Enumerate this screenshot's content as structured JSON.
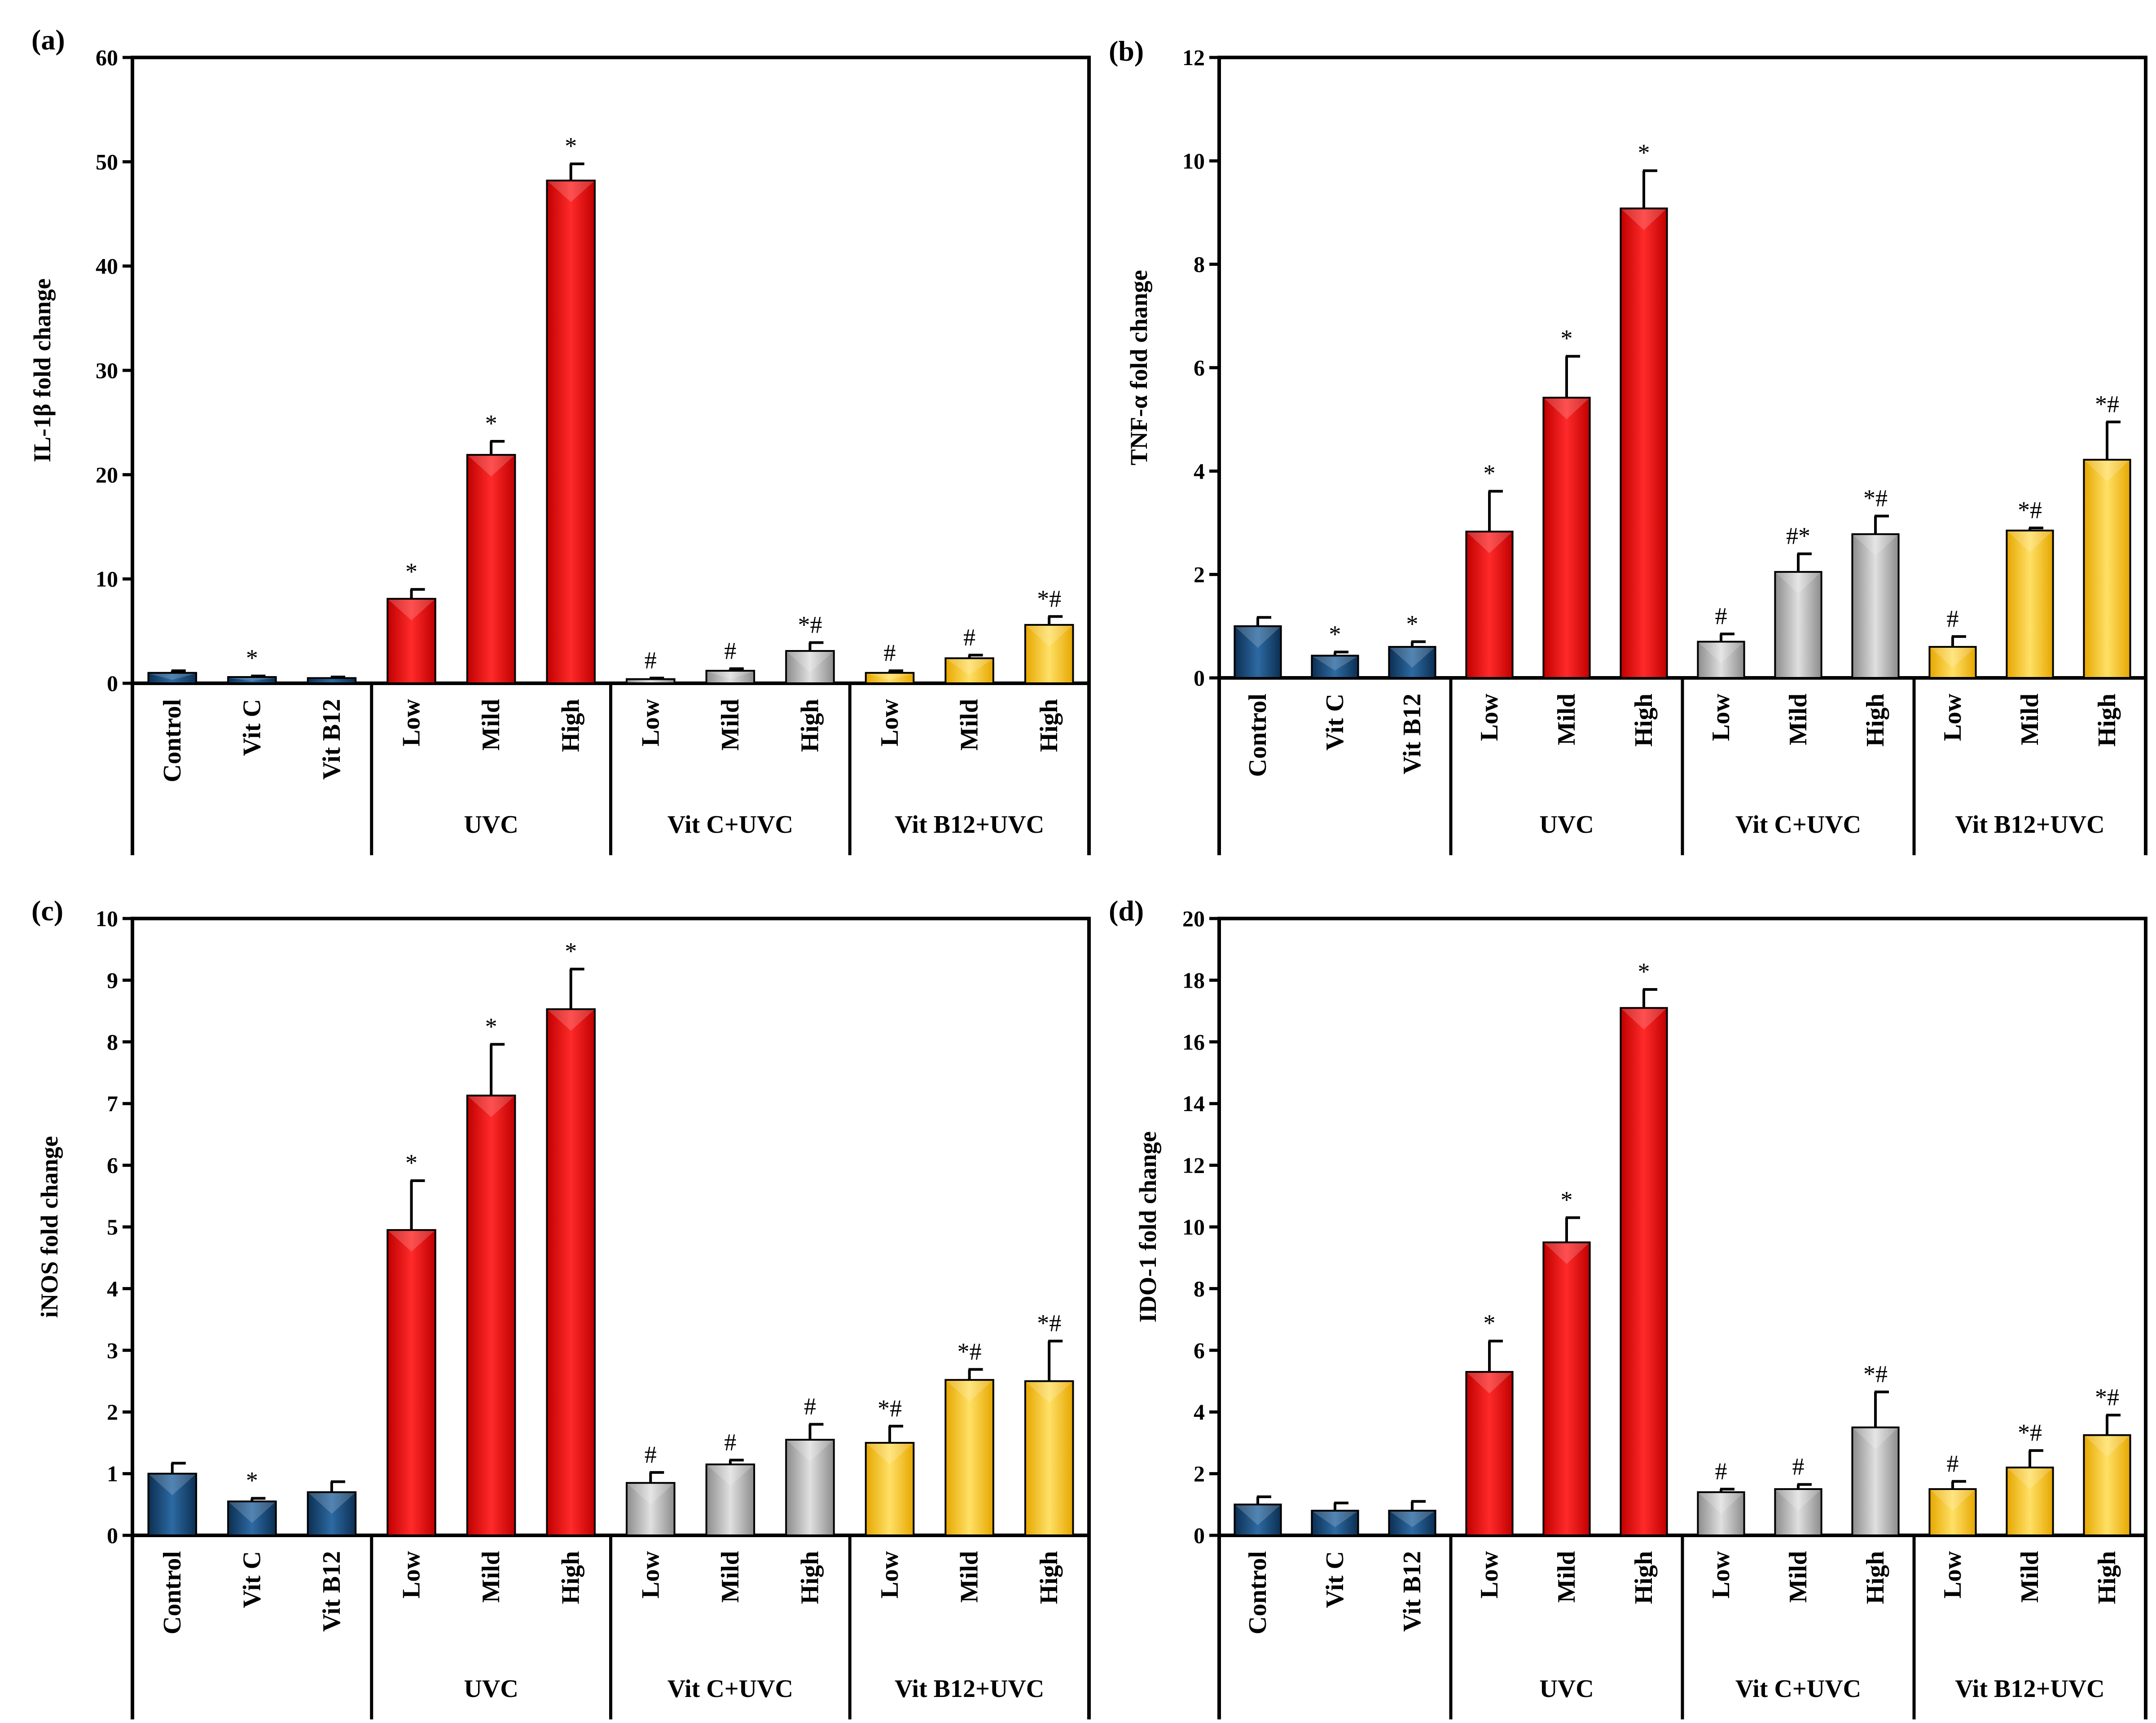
{
  "figure": {
    "palette": {
      "blue": "#1f4e79",
      "red": "#e3121b",
      "gray": "#a6a6a6",
      "yellow": "#ffc000"
    }
  },
  "chart_data": [
    {
      "type": "bar",
      "panel": "(a)",
      "ylabel": "IL-1β fold change",
      "ylim": [
        0,
        60
      ],
      "yticks": [
        0,
        10,
        20,
        30,
        40,
        50,
        60
      ],
      "categories": [
        "Control",
        "Vit C",
        "Vit B12",
        "Low",
        "Mild",
        "High",
        "Low",
        "Mild",
        "High",
        "Low",
        "Mild",
        "High"
      ],
      "groups": [
        {
          "label": "",
          "start": 0,
          "end": 2
        },
        {
          "label": "UVC",
          "start": 3,
          "end": 5
        },
        {
          "label": "Vit C+UVC",
          "start": 6,
          "end": 8
        },
        {
          "label": "Vit B12+UVC",
          "start": 9,
          "end": 11
        }
      ],
      "colors": [
        "blue",
        "blue",
        "blue",
        "red",
        "red",
        "red",
        "gray",
        "gray",
        "gray",
        "yellow",
        "yellow",
        "yellow"
      ],
      "values": [
        1.0,
        0.6,
        0.5,
        8.1,
        21.9,
        48.2,
        0.4,
        1.2,
        3.1,
        1.0,
        2.4,
        5.6
      ],
      "errors": [
        0.2,
        0.1,
        0.1,
        0.9,
        1.3,
        1.6,
        0.1,
        0.2,
        0.8,
        0.2,
        0.3,
        0.8
      ],
      "annotations": [
        "",
        "*",
        "",
        "*",
        "*",
        "*",
        "#",
        "#",
        "*#",
        "#",
        "#",
        "*#"
      ]
    },
    {
      "type": "bar",
      "panel": "(b)",
      "ylabel": "TNF-α fold change",
      "ylim": [
        0,
        12
      ],
      "yticks": [
        0,
        2,
        4,
        6,
        8,
        10,
        12
      ],
      "categories": [
        "Control",
        "Vit C",
        "Vit B12",
        "Low",
        "Mild",
        "High",
        "Low",
        "Mild",
        "High",
        "Low",
        "Mild",
        "High"
      ],
      "groups": [
        {
          "label": "",
          "start": 0,
          "end": 2
        },
        {
          "label": "UVC",
          "start": 3,
          "end": 5
        },
        {
          "label": "Vit C+UVC",
          "start": 6,
          "end": 8
        },
        {
          "label": "Vit B12+UVC",
          "start": 9,
          "end": 11
        }
      ],
      "colors": [
        "blue",
        "blue",
        "blue",
        "red",
        "red",
        "red",
        "gray",
        "gray",
        "gray",
        "yellow",
        "yellow",
        "yellow"
      ],
      "values": [
        1.0,
        0.43,
        0.6,
        2.83,
        5.42,
        9.08,
        0.7,
        2.05,
        2.78,
        0.6,
        2.85,
        4.22
      ],
      "errors": [
        0.17,
        0.07,
        0.1,
        0.78,
        0.8,
        0.73,
        0.15,
        0.35,
        0.35,
        0.2,
        0.05,
        0.73
      ],
      "annotations": [
        "",
        "*",
        "*",
        "*",
        "*",
        "*",
        "#",
        "#*",
        "*#",
        "#",
        "*#",
        "*#"
      ]
    },
    {
      "type": "bar",
      "panel": "(c)",
      "ylabel": "iNOS fold change",
      "ylim": [
        0,
        10
      ],
      "yticks": [
        0,
        1,
        2,
        3,
        4,
        5,
        6,
        7,
        8,
        9,
        10
      ],
      "categories": [
        "Control",
        "Vit C",
        "Vit B12",
        "Low",
        "Mild",
        "High",
        "Low",
        "Mild",
        "High",
        "Low",
        "Mild",
        "High"
      ],
      "groups": [
        {
          "label": "",
          "start": 0,
          "end": 2
        },
        {
          "label": "UVC",
          "start": 3,
          "end": 5
        },
        {
          "label": "Vit C+UVC",
          "start": 6,
          "end": 8
        },
        {
          "label": "Vit B12+UVC",
          "start": 9,
          "end": 11
        }
      ],
      "colors": [
        "blue",
        "blue",
        "blue",
        "red",
        "red",
        "red",
        "gray",
        "gray",
        "gray",
        "yellow",
        "yellow",
        "yellow"
      ],
      "values": [
        1.0,
        0.55,
        0.7,
        4.95,
        7.13,
        8.53,
        0.85,
        1.15,
        1.55,
        1.5,
        2.52,
        2.5
      ],
      "errors": [
        0.17,
        0.05,
        0.17,
        0.8,
        0.83,
        0.65,
        0.17,
        0.07,
        0.25,
        0.27,
        0.17,
        0.65
      ],
      "annotations": [
        "",
        "*",
        "",
        "*",
        "*",
        "*",
        "#",
        "#",
        "#",
        "*#",
        "*#",
        "*#"
      ]
    },
    {
      "type": "bar",
      "panel": "(d)",
      "ylabel": "IDO-1 fold change",
      "ylim": [
        0,
        20
      ],
      "yticks": [
        0,
        2,
        4,
        6,
        8,
        10,
        12,
        14,
        16,
        18,
        20
      ],
      "categories": [
        "Control",
        "Vit C",
        "Vit B12",
        "Low",
        "Mild",
        "High",
        "Low",
        "Mild",
        "High",
        "Low",
        "Mild",
        "High"
      ],
      "groups": [
        {
          "label": "",
          "start": 0,
          "end": 2
        },
        {
          "label": "UVC",
          "start": 3,
          "end": 5
        },
        {
          "label": "Vit C+UVC",
          "start": 6,
          "end": 8
        },
        {
          "label": "Vit B12+UVC",
          "start": 9,
          "end": 11
        }
      ],
      "colors": [
        "blue",
        "blue",
        "blue",
        "red",
        "red",
        "red",
        "gray",
        "gray",
        "gray",
        "yellow",
        "yellow",
        "yellow"
      ],
      "values": [
        1.0,
        0.8,
        0.8,
        5.3,
        9.5,
        17.1,
        1.4,
        1.5,
        3.5,
        1.5,
        2.2,
        3.25
      ],
      "errors": [
        0.25,
        0.25,
        0.3,
        1.0,
        0.8,
        0.6,
        0.1,
        0.15,
        1.15,
        0.25,
        0.55,
        0.65
      ],
      "annotations": [
        "",
        "",
        "",
        "*",
        "*",
        "*",
        "#",
        "#",
        "*#",
        "#",
        "*#",
        "*#"
      ]
    }
  ]
}
